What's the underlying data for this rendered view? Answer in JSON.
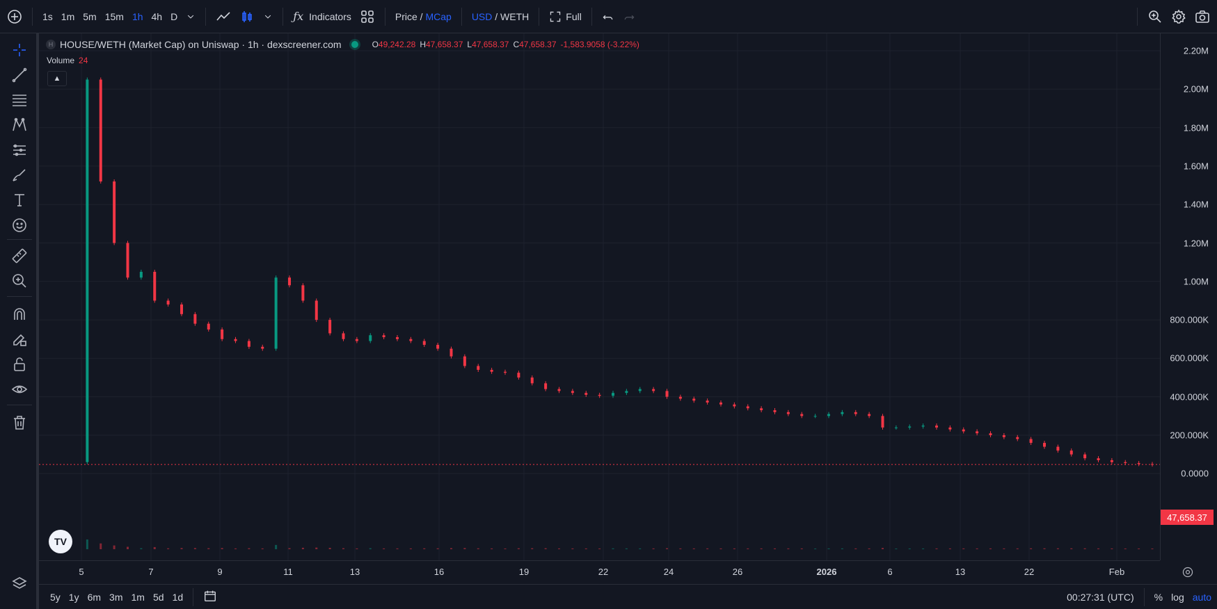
{
  "toolbar": {
    "intervals": [
      "1s",
      "1m",
      "5m",
      "15m",
      "1h",
      "4h",
      "D"
    ],
    "active_interval": "1h",
    "indicators_label": "Indicators",
    "price_label": "Price",
    "slash": " / ",
    "mcap_label": "MCap",
    "usd_label": "USD",
    "weth_label": "WETH",
    "full_label": "Full"
  },
  "legend": {
    "symbol_badge": "H",
    "title": "HOUSE/WETH (Market Cap) on Uniswap · 1h · dexscreener.com",
    "o_key": "O",
    "o_val": "49,242.28",
    "h_key": "H",
    "h_val": "47,658.37",
    "l_key": "L",
    "l_val": "47,658.37",
    "c_key": "C",
    "c_val": "47,658.37",
    "change": "-1,583.9058 (-3.22%)",
    "volume_label": "Volume",
    "volume_value": "24"
  },
  "price_axis": {
    "labels": [
      "2.20M",
      "2.00M",
      "1.80M",
      "1.60M",
      "1.40M",
      "1.20M",
      "1.00M",
      "800.000K",
      "600.000K",
      "400.000K",
      "200.000K",
      "0.0000"
    ],
    "last_price": "47,658.37"
  },
  "time_axis": {
    "labels": [
      "5",
      "7",
      "9",
      "11",
      "13",
      "16",
      "19",
      "22",
      "24",
      "26",
      "2026",
      "6",
      "13",
      "22",
      "Feb"
    ]
  },
  "bottombar": {
    "ranges": [
      "5y",
      "1y",
      "6m",
      "3m",
      "1m",
      "5d",
      "1d"
    ],
    "clock": "00:27:31 (UTC)",
    "percent": "%",
    "log": "log",
    "auto": "auto"
  },
  "colors": {
    "up": "#089981",
    "down": "#f23645",
    "accent": "#2962ff",
    "bg": "#131722"
  },
  "chart_data": {
    "type": "candlestick",
    "ylim": [
      0,
      2200000
    ],
    "series": [
      {
        "values": [
          60000,
          2050000,
          1520000,
          1200000,
          1020000,
          1050000,
          900000,
          880000,
          830000,
          780000,
          750000,
          700000,
          690000,
          660000,
          650000,
          1020000,
          980000,
          900000,
          800000,
          730000,
          700000,
          690000,
          720000,
          710000,
          700000,
          690000,
          670000,
          650000,
          610000,
          560000,
          540000,
          530000,
          525000,
          500000,
          470000,
          440000,
          430000,
          420000,
          410000,
          405000,
          420000,
          430000,
          440000,
          430000,
          400000,
          390000,
          380000,
          370000,
          360000,
          350000,
          340000,
          330000,
          320000,
          310000,
          300000,
          300000,
          310000,
          320000,
          310000,
          300000,
          240000,
          240000,
          245000,
          250000,
          240000,
          230000,
          220000,
          210000,
          200000,
          190000,
          180000,
          160000,
          140000,
          120000,
          100000,
          80000,
          70000,
          60000,
          55000,
          50000,
          47658
        ]
      }
    ],
    "last_value": 47658.37
  }
}
